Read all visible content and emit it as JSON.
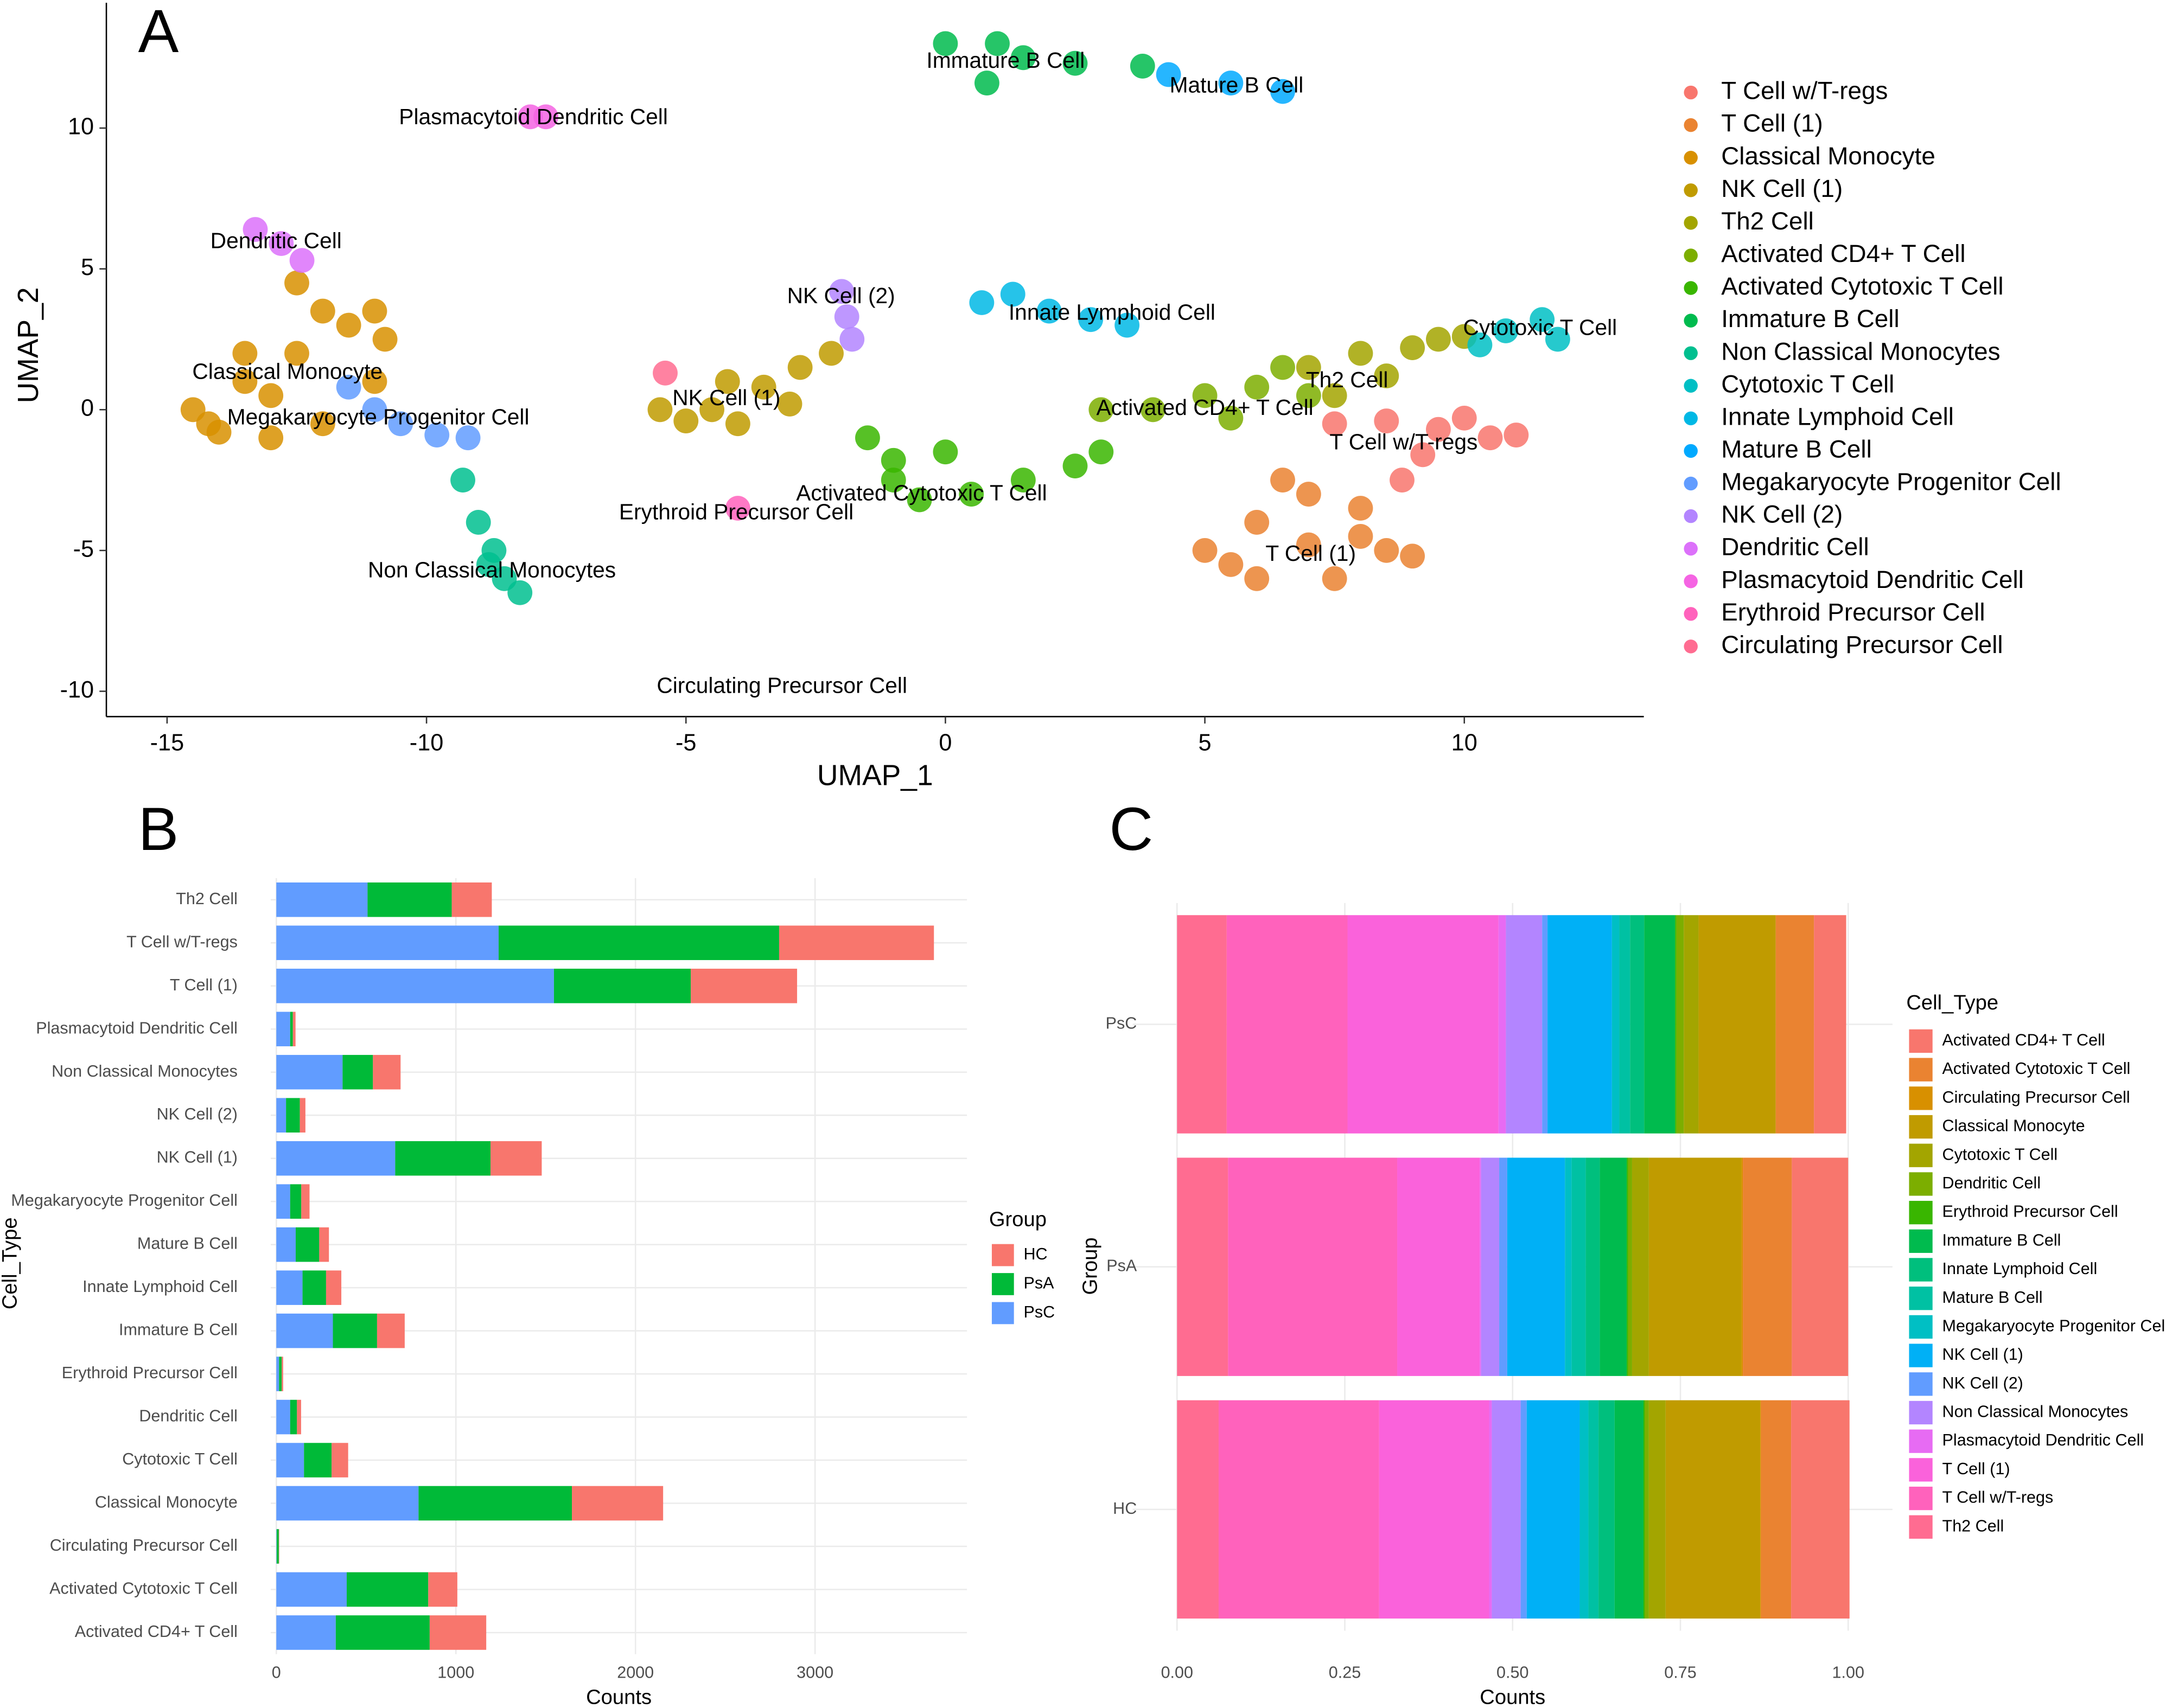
{
  "chart_data": [
    {
      "panel": "A",
      "type": "scatter",
      "xlabel": "UMAP_1",
      "ylabel": "UMAP_2",
      "xlim": [
        -16.17,
        13.46
      ],
      "ylim": [
        -10.9,
        14.45
      ],
      "xticks": [
        -15,
        -10,
        -5,
        0,
        5,
        10
      ],
      "yticks": [
        -10,
        -5,
        0,
        5,
        10
      ],
      "series": [
        {
          "name": "T Cell w/T-regs",
          "color": "#F8766D",
          "x": [
            7.5,
            8.5,
            9.5,
            10.5,
            11,
            8.8,
            9.2,
            10
          ],
          "y": [
            -0.5,
            -0.4,
            -0.7,
            -1,
            -0.9,
            -2.5,
            -1.6,
            -0.3
          ]
        },
        {
          "name": "T Cell (1)",
          "color": "#EA8331",
          "x": [
            5,
            6,
            7,
            8,
            8.5,
            6,
            7.5,
            5.5,
            7,
            9,
            6.5,
            8
          ],
          "y": [
            -5,
            -4,
            -3,
            -3.5,
            -5,
            -6,
            -6,
            -5.5,
            -4.8,
            -5.2,
            -2.5,
            -4.5
          ]
        },
        {
          "name": "Classical Monocyte",
          "color": "#D89000",
          "x": [
            -14.5,
            -13.5,
            -12.5,
            -11.5,
            -11,
            -13,
            -12,
            -11,
            -14,
            -12.5,
            -10.8,
            -13,
            -14.2,
            -12,
            -13.5
          ],
          "y": [
            0,
            1,
            2,
            3,
            3.5,
            -1,
            -0.5,
            1,
            -0.8,
            4.5,
            2.5,
            0.5,
            -0.5,
            3.5,
            2
          ]
        },
        {
          "name": "NK Cell (1)",
          "color": "#C09B00",
          "x": [
            -5.5,
            -4.5,
            -3.5,
            -2.8,
            -2.2,
            -4,
            -5,
            -3,
            -4.2
          ],
          "y": [
            0,
            0,
            0.8,
            1.5,
            2,
            -0.5,
            -0.4,
            0.2,
            1
          ]
        },
        {
          "name": "Th2 Cell",
          "color": "#A3A500",
          "x": [
            7,
            8,
            9,
            9.5,
            10,
            7.5,
            8.5
          ],
          "y": [
            1.5,
            2,
            2.2,
            2.5,
            2.6,
            0.5,
            1.2
          ]
        },
        {
          "name": "Activated CD4+ T Cell",
          "color": "#7CAE00",
          "x": [
            3,
            4,
            5,
            6,
            7,
            6.5,
            5.5
          ],
          "y": [
            0,
            0,
            0.5,
            0.8,
            0.5,
            1.5,
            -0.3
          ]
        },
        {
          "name": "Activated Cytotoxic T Cell",
          "color": "#39B600",
          "x": [
            -1.5,
            -1,
            -0.5,
            0.5,
            1.5,
            2.5,
            3,
            -1,
            0
          ],
          "y": [
            -1,
            -2.5,
            -3.2,
            -3,
            -2.5,
            -2,
            -1.5,
            -1.8,
            -1.5
          ]
        },
        {
          "name": "Immature B Cell",
          "color": "#00BB4E",
          "x": [
            0,
            1,
            1.5,
            0.8,
            2.5,
            3.8
          ],
          "y": [
            13,
            13,
            12.5,
            11.6,
            12.3,
            12.2
          ]
        },
        {
          "name": "Non Classical Monocytes",
          "color": "#00BF8F",
          "x": [
            -9.3,
            -9,
            -8.7,
            -8.5,
            -8.2,
            -8.8
          ],
          "y": [
            -2.5,
            -4,
            -5,
            -6,
            -6.5,
            -5.5
          ]
        },
        {
          "name": "Cytotoxic T Cell",
          "color": "#00BFC4",
          "x": [
            10.3,
            10.8,
            11.5,
            11.8
          ],
          "y": [
            2.3,
            2.8,
            3.2,
            2.5
          ]
        },
        {
          "name": "Innate Lymphoid Cell",
          "color": "#00B8E5",
          "x": [
            0.7,
            1.3,
            2,
            2.8,
            3.5
          ],
          "y": [
            3.8,
            4.1,
            3.5,
            3.2,
            3
          ]
        },
        {
          "name": "Mature B Cell",
          "color": "#00A9FF",
          "x": [
            4.3,
            5.5,
            6.5
          ],
          "y": [
            11.9,
            11.6,
            11.3
          ]
        },
        {
          "name": "Megakaryocyte Progenitor Cell",
          "color": "#619CFF",
          "x": [
            -11.5,
            -11,
            -10.5,
            -9.8,
            -9.2
          ],
          "y": [
            0.8,
            0,
            -0.5,
            -0.9,
            -1
          ]
        },
        {
          "name": "NK Cell (2)",
          "color": "#B385FF",
          "x": [
            -2,
            -1.9,
            -1.8
          ],
          "y": [
            4.2,
            3.3,
            2.5
          ]
        },
        {
          "name": "Dendritic Cell",
          "color": "#DC71FA",
          "x": [
            -13.3,
            -12.8,
            -12.4
          ],
          "y": [
            6.4,
            5.9,
            5.3
          ]
        },
        {
          "name": "Plasmacytoid Dendritic Cell",
          "color": "#F564E3",
          "x": [
            -8,
            -7.7
          ],
          "y": [
            10.4,
            10.4
          ]
        },
        {
          "name": "Erythroid Precursor Cell",
          "color": "#FF62BC",
          "x": [
            -4
          ],
          "y": [
            -3.5
          ]
        },
        {
          "name": "Circulating Precursor Cell",
          "color": "#FF6C91",
          "x": [
            -5.4
          ],
          "y": [
            1.3
          ]
        }
      ],
      "annotations": [
        {
          "text": "Immature B Cell",
          "x": 1.16,
          "y": 12.35
        },
        {
          "text": "Mature B Cell",
          "x": 5.61,
          "y": 11.47
        },
        {
          "text": "Plasmacytoid Dendritic Cell",
          "x": -7.94,
          "y": 10.34
        },
        {
          "text": "Dendritic Cell",
          "x": -12.9,
          "y": 5.94
        },
        {
          "text": "NK Cell (2)",
          "x": -2.01,
          "y": 3.99
        },
        {
          "text": "Innate Lymphoid Cell",
          "x": 3.21,
          "y": 3.4
        },
        {
          "text": "Cytotoxic T Cell",
          "x": 11.46,
          "y": 2.86
        },
        {
          "text": "Classical Monocyte",
          "x": -12.68,
          "y": 1.3
        },
        {
          "text": "Th2 Cell",
          "x": 7.74,
          "y": 1.0
        },
        {
          "text": "Activated CD4+ T Cell",
          "x": 5.0,
          "y": 0.02
        },
        {
          "text": "Megakaryocyte Progenitor Cell",
          "x": -10.93,
          "y": -0.32
        },
        {
          "text": "NK Cell (1)",
          "x": -4.22,
          "y": 0.37
        },
        {
          "text": "T Cell w/T-regs",
          "x": 8.83,
          "y": -1.2
        },
        {
          "text": "Activated Cytotoxic T Cell",
          "x": -0.46,
          "y": -3.01
        },
        {
          "text": "Erythroid Precursor Cell",
          "x": -4.03,
          "y": -3.69
        },
        {
          "text": "Non Classical Monocytes",
          "x": -8.74,
          "y": -5.75
        },
        {
          "text": "T Cell (1)",
          "x": 7.04,
          "y": -5.16
        },
        {
          "text": "Circulating Precursor Cell",
          "x": -3.15,
          "y": -9.85
        }
      ]
    },
    {
      "panel": "B",
      "type": "bar",
      "orientation": "horizontal",
      "stacked": true,
      "xlabel": "Counts",
      "ylabel": "Cell_Type",
      "legend_title": "Group",
      "xlim": [
        -31,
        3846
      ],
      "xticks": [
        0,
        1000,
        2000,
        3000
      ],
      "grid": true,
      "categories": [
        "Activated CD4+ T Cell",
        "Activated Cytotoxic T Cell",
        "Circulating Precursor Cell",
        "Classical Monocyte",
        "Cytotoxic T Cell",
        "Dendritic Cell",
        "Erythroid Precursor Cell",
        "Immature B Cell",
        "Innate Lymphoid Cell",
        "Mature B Cell",
        "Megakaryocyte Progenitor Cell",
        "NK Cell (1)",
        "NK Cell (2)",
        "Non Classical Monocytes",
        "Plasmacytoid Dendritic Cell",
        "T Cell (1)",
        "T Cell w/T-regs",
        "Th2 Cell"
      ],
      "series": [
        {
          "name": "HC",
          "color": "#F8766D",
          "values": [
            315,
            162,
            2,
            508,
            92,
            23,
            8,
            154,
            85,
            54,
            46,
            285,
            31,
            154,
            15,
            592,
            862,
            223
          ]
        },
        {
          "name": "PsA",
          "color": "#00BA38",
          "values": [
            523,
            454,
            12,
            854,
            154,
            38,
            15,
            246,
            131,
            131,
            62,
            531,
            77,
            169,
            15,
            762,
            1562,
            469
          ]
        },
        {
          "name": "PsC",
          "color": "#619CFF",
          "values": [
            331,
            392,
            2,
            792,
            154,
            77,
            15,
            315,
            146,
            108,
            77,
            662,
            54,
            369,
            77,
            1546,
            1238,
            508
          ]
        }
      ]
    },
    {
      "panel": "C",
      "type": "bar",
      "orientation": "horizontal",
      "stacked": true,
      "xlabel": "Counts",
      "ylabel": "Group",
      "legend_title": "Cell_Type",
      "xlim": [
        -0.066,
        1.066
      ],
      "xticks": [
        {
          "value": 0,
          "label": "0.00"
        },
        {
          "value": 0.25,
          "label": "0.25"
        },
        {
          "value": 0.5,
          "label": "0.50"
        },
        {
          "value": 0.75,
          "label": "0.75"
        },
        {
          "value": 1,
          "label": "1.00"
        }
      ],
      "grid": true,
      "categories": [
        "HC",
        "PsA",
        "PsC"
      ],
      "series": [
        {
          "name": "Activated CD4+ T Cell",
          "color": "#F8766D",
          "values": [
            0.087,
            0.084,
            0.048
          ]
        },
        {
          "name": "Activated Cytotoxic T Cell",
          "color": "#EA8331",
          "values": [
            0.045,
            0.073,
            0.057
          ]
        },
        {
          "name": "Circulating Precursor Cell",
          "color": "#D89000",
          "values": [
            0.001,
            0.002,
            0.0
          ]
        },
        {
          "name": "Classical Monocyte",
          "color": "#C09B00",
          "values": [
            0.141,
            0.138,
            0.115
          ]
        },
        {
          "name": "Cytotoxic T Cell",
          "color": "#A3A500",
          "values": [
            0.025,
            0.025,
            0.022
          ]
        },
        {
          "name": "Dendritic Cell",
          "color": "#7CAE00",
          "values": [
            0.006,
            0.006,
            0.011
          ]
        },
        {
          "name": "Erythroid Precursor Cell",
          "color": "#39B600",
          "values": [
            0.002,
            0.002,
            0.002
          ]
        },
        {
          "name": "Immature B Cell",
          "color": "#00BB4E",
          "values": [
            0.043,
            0.04,
            0.046
          ]
        },
        {
          "name": "Innate Lymphoid Cell",
          "color": "#00BF7D",
          "values": [
            0.024,
            0.021,
            0.021
          ]
        },
        {
          "name": "Mature B Cell",
          "color": "#00C1A3",
          "values": [
            0.015,
            0.021,
            0.016
          ]
        },
        {
          "name": "Megakaryocyte Progenitor Cell",
          "color": "#00BFC4",
          "values": [
            0.013,
            0.01,
            0.011
          ]
        },
        {
          "name": "NK Cell (1)",
          "color": "#00B0F6",
          "values": [
            0.079,
            0.086,
            0.096
          ]
        },
        {
          "name": "NK Cell (2)",
          "color": "#619CFF",
          "values": [
            0.009,
            0.012,
            0.008
          ]
        },
        {
          "name": "Non Classical Monocytes",
          "color": "#B385FF",
          "values": [
            0.043,
            0.027,
            0.054
          ]
        },
        {
          "name": "Plasmacytoid Dendritic Cell",
          "color": "#E76BF3",
          "values": [
            0.004,
            0.002,
            0.011
          ]
        },
        {
          "name": "T Cell (1)",
          "color": "#FA62DB",
          "values": [
            0.164,
            0.123,
            0.225
          ]
        },
        {
          "name": "T Cell w/T-regs",
          "color": "#FF62BC",
          "values": [
            0.239,
            0.252,
            0.18
          ]
        },
        {
          "name": "Th2 Cell",
          "color": "#FF6C91",
          "values": [
            0.062,
            0.076,
            0.074
          ]
        }
      ]
    }
  ]
}
